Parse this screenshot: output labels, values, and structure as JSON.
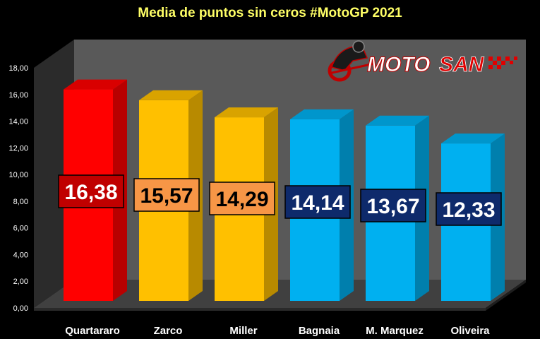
{
  "chart_data": {
    "type": "bar",
    "title": "Media de puntos sin ceros #MotoGP 2021",
    "categories": [
      "Quartararo",
      "Zarco",
      "Miller",
      "Bagnaia",
      "M. Marquez",
      "Oliveira"
    ],
    "values": [
      16.38,
      15.57,
      14.29,
      14.14,
      13.67,
      12.33
    ],
    "value_labels": [
      "16,38",
      "15,57",
      "14,29",
      "14,14",
      "13,67",
      "12,33"
    ],
    "yticks": [
      "0,00",
      "2,00",
      "4,00",
      "6,00",
      "8,00",
      "10,00",
      "12,00",
      "14,00",
      "16,00",
      "18,00"
    ],
    "ylim": [
      0,
      18
    ],
    "grid": false,
    "bar_colors": [
      "#FF0000",
      "#FFC000",
      "#FFC000",
      "#00B0F0",
      "#00B0F0",
      "#00B0F0"
    ],
    "label_bg_colors": [
      "#C00000",
      "#F79646",
      "#F79646",
      "#0E2A6B",
      "#0E2A6B",
      "#0E2A6B"
    ],
    "label_text_colors": [
      "#FFFFFF",
      "#000000",
      "#000000",
      "#FFFFFF",
      "#FFFFFF",
      "#FFFFFF"
    ]
  },
  "logo": {
    "text_white": "MOTO",
    "text_red": "SAN",
    "icon": "motorcycle-rider-icon"
  }
}
